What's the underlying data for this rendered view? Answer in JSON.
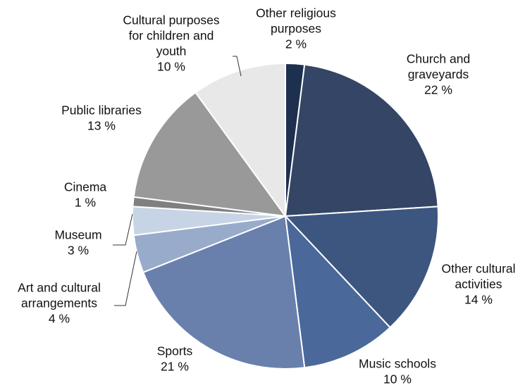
{
  "chart_data": {
    "type": "pie",
    "slices": [
      {
        "label": [
          "Other religious",
          "purposes"
        ],
        "value": 2,
        "display": "2 %",
        "color": "#1e3050"
      },
      {
        "label": [
          "Church and",
          "graveyards"
        ],
        "value": 22,
        "display": "22 %",
        "color": "#344566"
      },
      {
        "label": [
          "Other cultural",
          "activities"
        ],
        "value": 14,
        "display": "14 %",
        "color": "#3d5680"
      },
      {
        "label": [
          "Music schools"
        ],
        "value": 10,
        "display": "10 %",
        "color": "#4a6899"
      },
      {
        "label": [
          "Sports"
        ],
        "value": 21,
        "display": "21 %",
        "color": "#6980ad"
      },
      {
        "label": [
          "Art and cultural",
          "arrangements"
        ],
        "value": 4,
        "display": "4 %",
        "color": "#98abcb"
      },
      {
        "label": [
          "Museum"
        ],
        "value": 3,
        "display": "3 %",
        "color": "#c6d4e6"
      },
      {
        "label": [
          "Cinema"
        ],
        "value": 1,
        "display": "1 %",
        "color": "#808080"
      },
      {
        "label": [
          "Public libraries"
        ],
        "value": 13,
        "display": "13 %",
        "color": "#999999"
      },
      {
        "label": [
          "Cultural purposes",
          "for children and",
          "youth"
        ],
        "value": 10,
        "display": "10 %",
        "color": "#e8e8e8"
      }
    ]
  }
}
